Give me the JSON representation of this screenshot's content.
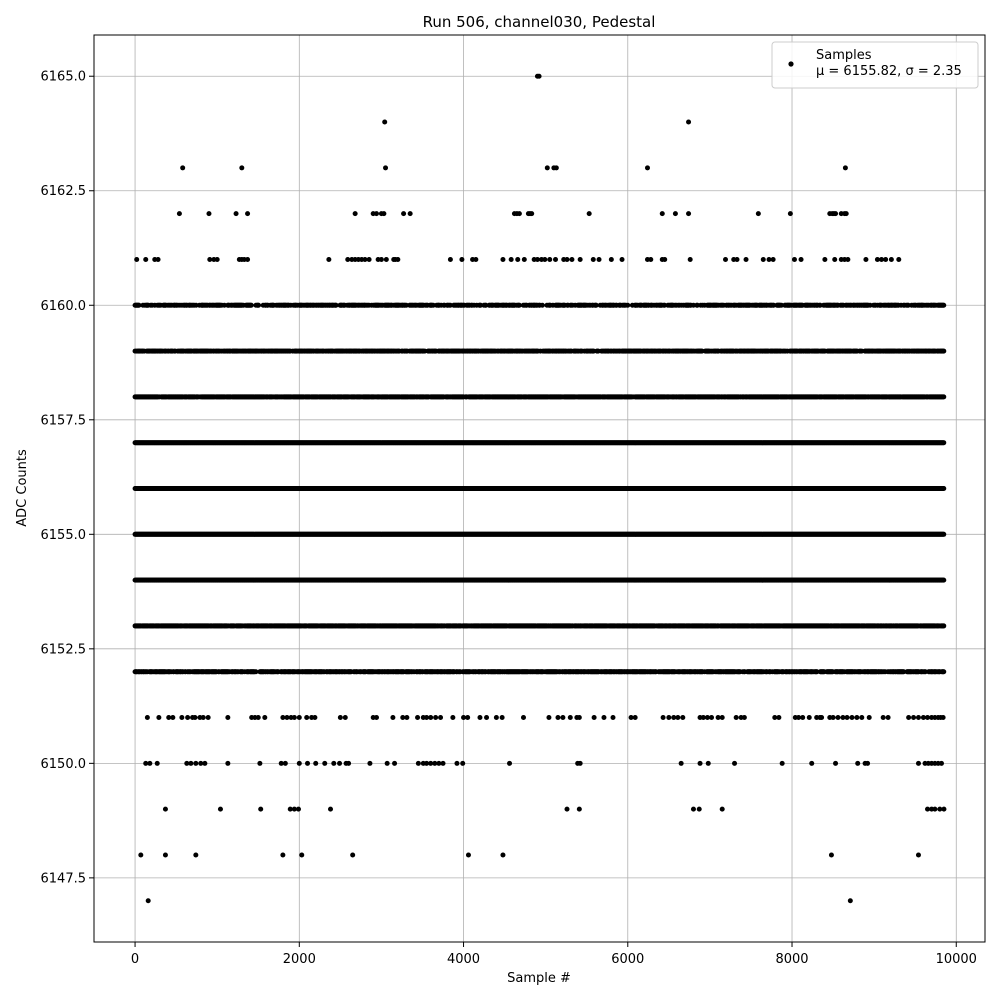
{
  "chart_data": {
    "type": "scatter",
    "title": "Run 506, channel030, Pedestal",
    "xlabel": "Sample #",
    "ylabel": "ADC Counts",
    "xlim": [
      -500,
      10350
    ],
    "ylim": [
      6146.1,
      6165.9
    ],
    "xticks": [
      0,
      2000,
      4000,
      6000,
      8000,
      10000
    ],
    "xtick_labels": [
      "0",
      "2000",
      "4000",
      "6000",
      "8000",
      "10000"
    ],
    "yticks": [
      6147.5,
      6150.0,
      6152.5,
      6155.0,
      6157.5,
      6160.0,
      6162.5,
      6165.0
    ],
    "ytick_labels": [
      "6147.5",
      "6150.0",
      "6152.5",
      "6155.0",
      "6157.5",
      "6160.0",
      "6162.5",
      "6165.0"
    ],
    "grid": true,
    "legend": {
      "placement": "top-right",
      "entries": [
        {
          "label": "Samples",
          "stats": "μ = 6155.82, σ = 2.35"
        }
      ]
    },
    "marker_color": "#000000",
    "stats": {
      "mu": 6155.82,
      "sigma": 2.35
    },
    "series": [
      {
        "name": "Samples",
        "levels": [
          {
            "y": 6165,
            "x": [
              4900,
              4920
            ]
          },
          {
            "y": 6164,
            "x": [
              3040,
              6740
            ]
          },
          {
            "y": 6163,
            "x": [
              580,
              1300,
              3050,
              5020,
              5100,
              5130,
              6240,
              8650
            ]
          },
          {
            "y": 6162,
            "x": [
              540,
              900,
              1230,
              1370,
              2680,
              2900,
              2940,
              3000,
              3030,
              3270,
              3350,
              4620,
              4650,
              4680,
              4790,
              4810,
              4830,
              5530,
              6420,
              6580,
              6740,
              7590,
              7980,
              8460,
              8490,
              8510,
              8530,
              8600,
              8640,
              8660
            ]
          },
          {
            "y": 6161,
            "x": [
              20,
              130,
              240,
              280,
              910,
              960,
              1000,
              1270,
              1300,
              1330,
              1370,
              2360,
              2590,
              2640,
              2680,
              2720,
              2760,
              2800,
              2850,
              2960,
              3000,
              3060,
              3150,
              3170,
              3200,
              3840,
              3980,
              4110,
              4150,
              4480,
              4580,
              4660,
              4740,
              4860,
              4900,
              4950,
              4990,
              5050,
              5120,
              5220,
              5260,
              5320,
              5420,
              5580,
              5650,
              5800,
              5930,
              6240,
              6280,
              6420,
              6450,
              6760,
              7190,
              7290,
              7330,
              7440,
              7650,
              7720,
              7770,
              8030,
              8110,
              8400,
              8520,
              8600,
              8640,
              8680,
              8900,
              9040,
              9090,
              9140,
              9210,
              9300
            ]
          },
          {
            "y": 6160,
            "density": 0.55
          },
          {
            "y": 6159,
            "density": 0.7
          },
          {
            "y": 6158,
            "density": 0.9
          },
          {
            "y": 6157,
            "density": 1.0
          },
          {
            "y": 6156,
            "density": 1.0
          },
          {
            "y": 6155,
            "density": 1.0
          },
          {
            "y": 6154,
            "density": 1.0
          },
          {
            "y": 6153,
            "density": 0.9
          },
          {
            "y": 6152,
            "density": 0.75
          },
          {
            "y": 6151,
            "x": [
              150,
              290,
              410,
              460,
              570,
              640,
              700,
              730,
              790,
              830,
              890,
              1130,
              1420,
              1460,
              1500,
              1580,
              1800,
              1850,
              1900,
              1940,
              2000,
              2090,
              2150,
              2190,
              2500,
              2560,
              2900,
              2940,
              3140,
              3260,
              3310,
              3440,
              3510,
              3550,
              3600,
              3660,
              3720,
              3870,
              4000,
              4050,
              4200,
              4280,
              4400,
              4470,
              4730,
              5040,
              5150,
              5210,
              5300,
              5380,
              5410,
              5590,
              5710,
              5820,
              6040,
              6090,
              6430,
              6500,
              6560,
              6610,
              6670,
              6880,
              6920,
              6970,
              7020,
              7100,
              7150,
              7320,
              7380,
              7420,
              7790,
              7840,
              8040,
              8080,
              8130,
              8210,
              8300,
              8340,
              8360,
              8460,
              8500,
              8560,
              8620,
              8670,
              8730,
              8790,
              8850,
              8940,
              9110,
              9170,
              9420,
              9480,
              9540,
              9600,
              9650,
              9700,
              9740,
              9780,
              9810,
              9840
            ]
          },
          {
            "y": 6150,
            "x": [
              130,
              180,
              270,
              630,
              680,
              740,
              800,
              850,
              1130,
              1520,
              1780,
              1830,
              2000,
              2100,
              2200,
              2310,
              2420,
              2490,
              2570,
              2600,
              2860,
              3070,
              3160,
              3450,
              3510,
              3550,
              3600,
              3650,
              3700,
              3750,
              3920,
              3990,
              4560,
              5390,
              5420,
              6650,
              6880,
              6980,
              7300,
              7880,
              8240,
              8530,
              8800,
              8890,
              8920,
              9540,
              9620,
              9660,
              9700,
              9740,
              9780,
              9820
            ]
          },
          {
            "y": 6149,
            "x": [
              370,
              1040,
              1530,
              1890,
              1940,
              1990,
              2380,
              5260,
              5410,
              6800,
              6870,
              7150,
              9650,
              9700,
              9740,
              9800,
              9850
            ]
          },
          {
            "y": 6148,
            "x": [
              70,
              370,
              740,
              1800,
              2030,
              2650,
              4060,
              4480,
              8480,
              9540
            ]
          },
          {
            "y": 6147,
            "x": [
              160,
              8710
            ]
          }
        ]
      }
    ]
  }
}
